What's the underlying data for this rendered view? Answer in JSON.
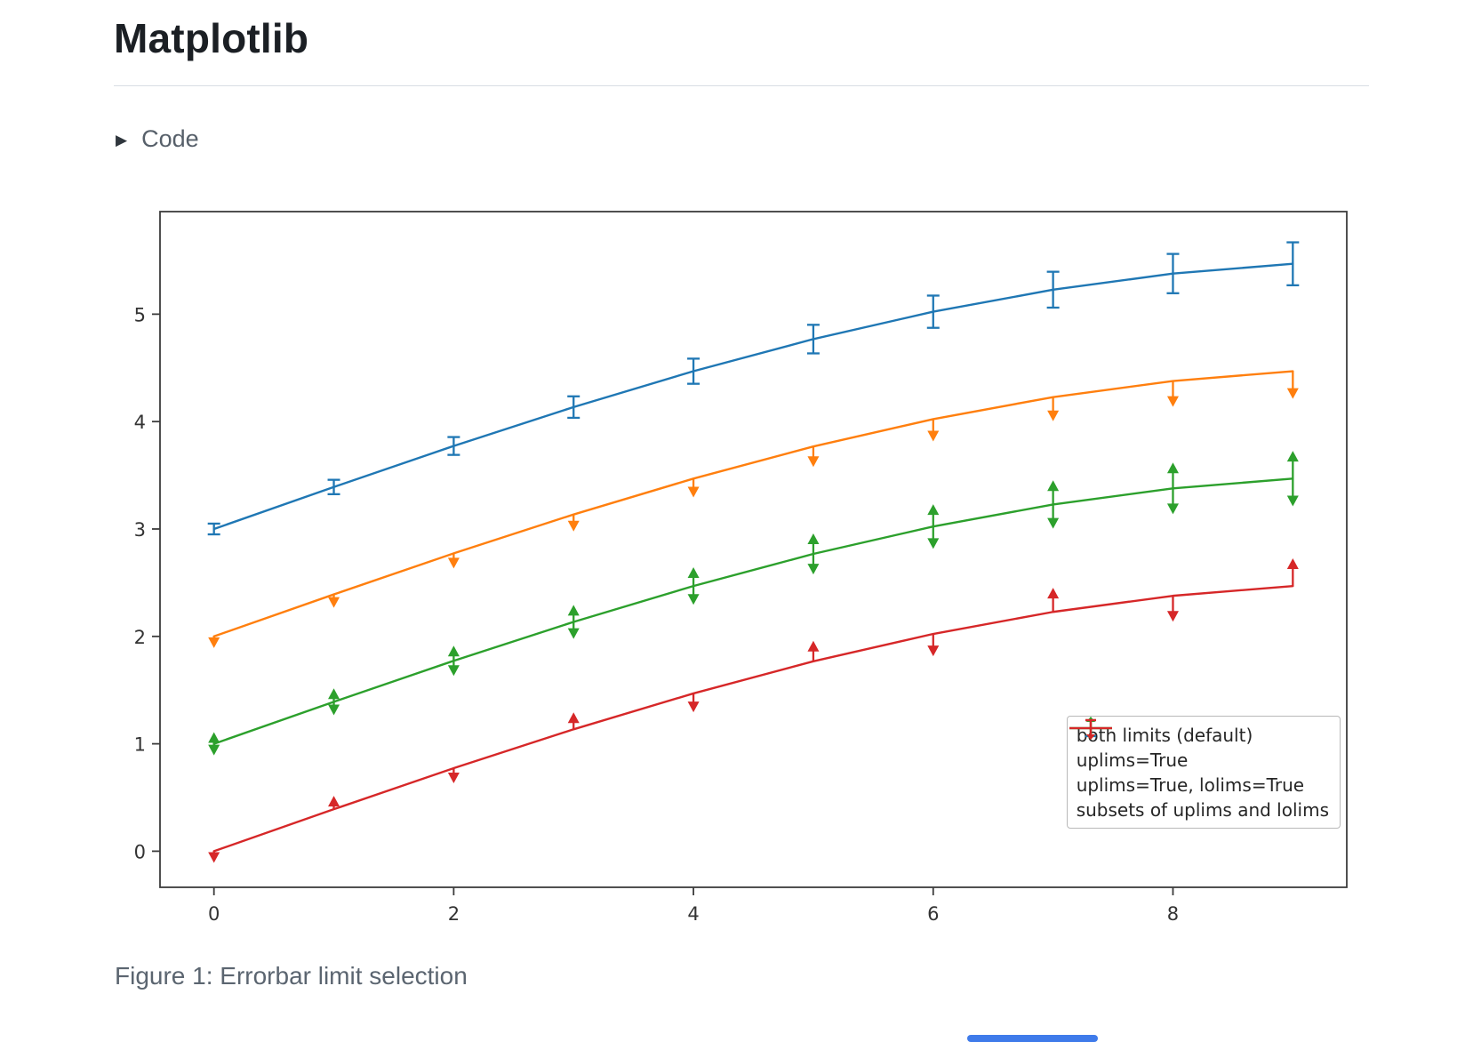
{
  "page": {
    "title": "Matplotlib",
    "code_toggle_label": "Code",
    "caption": "Figure 1: Errorbar limit selection",
    "accent_bar_color": "#3f7bea"
  },
  "chart_data": {
    "type": "line",
    "title": "",
    "xlabel": "",
    "ylabel": "",
    "x": [
      0,
      1,
      2,
      3,
      4,
      5,
      6,
      7,
      8,
      9
    ],
    "yerr": [
      0.05,
      0.067,
      0.083,
      0.1,
      0.117,
      0.133,
      0.15,
      0.167,
      0.183,
      0.2
    ],
    "xlim": [
      -0.45,
      9.45
    ],
    "ylim": [
      -0.336,
      5.955
    ],
    "xticks": [
      0,
      2,
      4,
      6,
      8
    ],
    "yticks": [
      0,
      1,
      2,
      3,
      4,
      5
    ],
    "grid": false,
    "legend_position": "lower right",
    "axis_color": "#3c3c3c",
    "tick_label_color": "#333333",
    "series": [
      {
        "name": "both limits (default)",
        "color": "#1f77b4",
        "limits": "both_caps",
        "values": [
          3.0,
          3.391,
          3.773,
          4.135,
          4.469,
          4.768,
          5.023,
          5.228,
          5.378,
          5.469
        ]
      },
      {
        "name": "uplims=True",
        "color": "#ff7f0e",
        "limits": "uplims",
        "values": [
          2.0,
          2.391,
          2.773,
          3.135,
          3.469,
          3.768,
          4.023,
          4.228,
          4.378,
          4.469
        ]
      },
      {
        "name": "uplims=True, lolims=True",
        "color": "#2ca02c",
        "limits": "uplims_lolims",
        "values": [
          1.0,
          1.391,
          1.773,
          2.135,
          2.469,
          2.768,
          3.023,
          3.228,
          3.378,
          3.469
        ]
      },
      {
        "name": "subsets of uplims and lolims",
        "color": "#d62728",
        "limits": "subset",
        "uplims": [
          true,
          false,
          true,
          false,
          true,
          false,
          true,
          false,
          true,
          false
        ],
        "lolims": [
          false,
          true,
          false,
          true,
          false,
          true,
          false,
          true,
          false,
          true
        ],
        "values": [
          0.0,
          0.391,
          0.773,
          1.135,
          1.469,
          1.768,
          2.023,
          2.228,
          2.378,
          2.469
        ]
      }
    ]
  }
}
